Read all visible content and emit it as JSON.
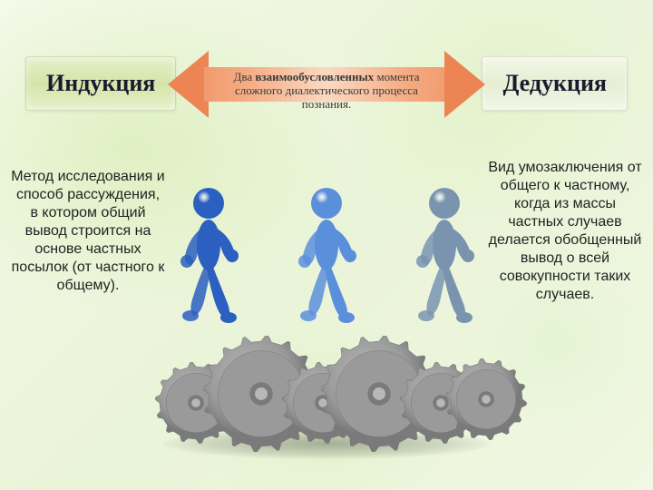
{
  "left_title": {
    "text": "Индукция",
    "fontsize": 26
  },
  "right_title": {
    "text": "Дедукция",
    "fontsize": 26
  },
  "center_arrow": {
    "line1": "Два <b>взаимообусловленных</b> момента",
    "line2": "сложного диалектического процесса",
    "line3": "познания.",
    "fontsize": 13,
    "arrow_fill_light": "#fbd8c2",
    "arrow_fill_dark": "#ed8454",
    "text_color": "#3a3a3a"
  },
  "left_desc": {
    "text": "Метод исследования и способ рассуждения, в котором общий вывод строится на основе частных посылок (от частного к общему).",
    "fontsize": 16
  },
  "right_desc": {
    "text": "Вид умозаключения от общего к частному, когда из массы частных случаев делается обобщенный вывод о всей совокупности таких случаев.",
    "fontsize": 16
  },
  "figures": {
    "count": 3,
    "colors": [
      "#2b5fc0",
      "#5a8fdc",
      "#7a94b0"
    ],
    "head_radius": 17,
    "positions": [
      0,
      130,
      260
    ]
  },
  "gears": {
    "small_radius": 40,
    "large_radius": 58,
    "color_light": "#b8b8b8",
    "color_dark": "#7a7a7a",
    "color_rim": "#9a9a9a",
    "teeth": 14
  },
  "background": {
    "base": "#f0f7e2",
    "bokeh": [
      "#d8ebb8",
      "#e4f2cc",
      "#cfe6a6"
    ]
  }
}
